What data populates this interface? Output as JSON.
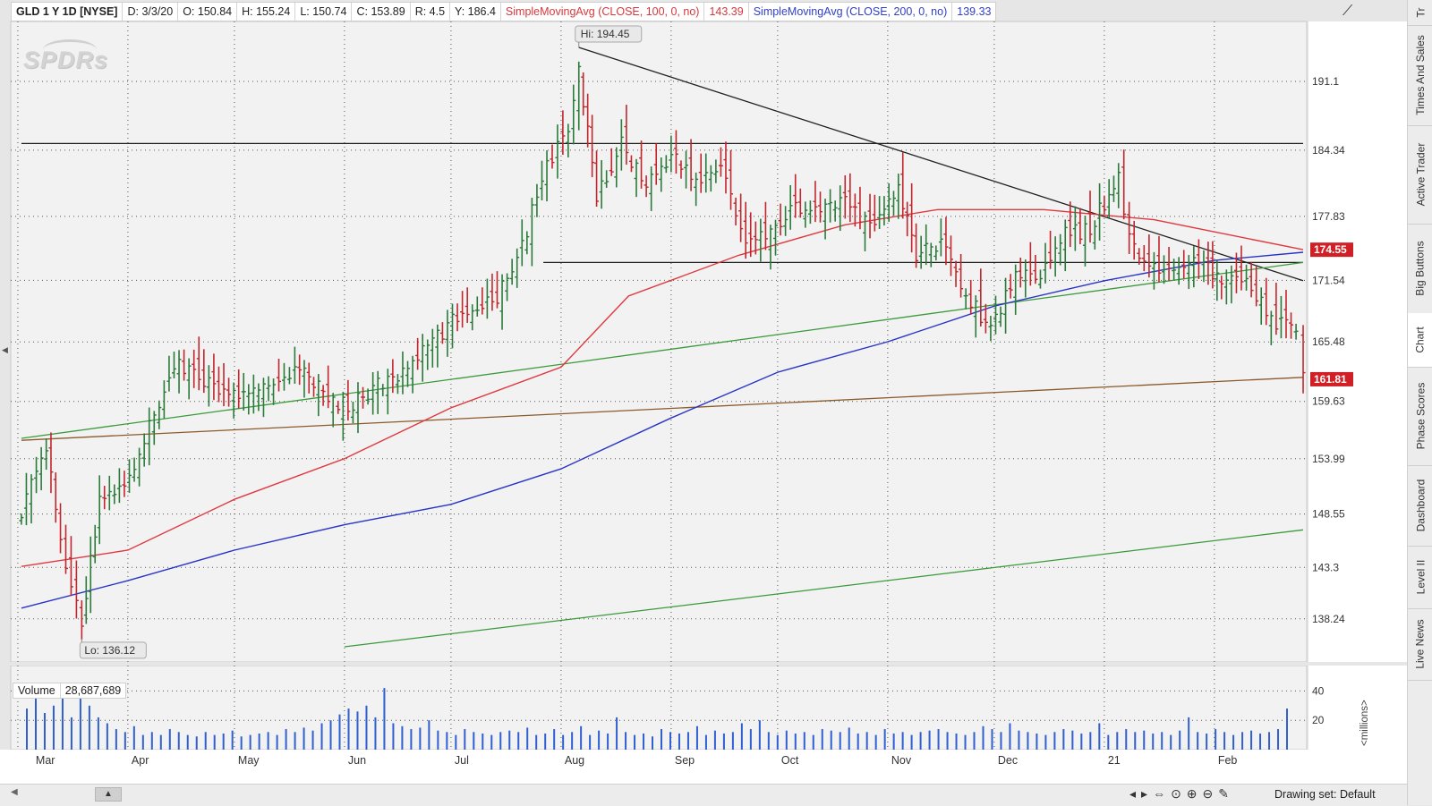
{
  "header": {
    "symbol": "GLD 1 Y 1D [NYSE]",
    "date": "D: 3/3/20",
    "open": "O: 150.84",
    "high": "H: 155.24",
    "low": "L: 150.74",
    "close": "C: 153.89",
    "range": "R: 4.5",
    "y": "Y: 186.4",
    "sma100_label": "SimpleMovingAvg (CLOSE, 100, 0, no)",
    "sma100_value": "143.39",
    "sma200_label": "SimpleMovingAvg (CLOSE, 200, 0, no)",
    "sma200_value": "139.33"
  },
  "logo_text": "SPDRs",
  "volume_panel": {
    "label": "Volume",
    "value": "28,687,689",
    "unit_label": "<millions>"
  },
  "right_tabs": [
    "Tr",
    "Times And Sales",
    "Active Trader",
    "Big Buttons",
    "Chart",
    "Phase Scores",
    "Dashboard",
    "Level II",
    "Live News"
  ],
  "active_tab": "Chart",
  "bottom_bar": {
    "drawing_set": "Drawing set: Default",
    "scroll_glyph": "▲"
  },
  "colors": {
    "up": "#2a7a3a",
    "down": "#c0272d",
    "sma100": "#e0383f",
    "sma200": "#2833c8",
    "trend_green": "#3a9a3a",
    "trend_brown": "#8a5a2a",
    "trend_black": "#222222",
    "volume": "#2f5fd0",
    "background": "#f2f2f2"
  },
  "chart_data": [
    {
      "type": "candlestick",
      "symbol": "GLD",
      "y_axis_ticks": [
        "191.1",
        "184.34",
        "177.83",
        "171.54",
        "165.48",
        "159.63",
        "153.99",
        "148.55",
        "143.3",
        "138.24"
      ],
      "x_axis_labels": [
        "Mar",
        "Apr",
        "May",
        "Jun",
        "Jul",
        "Aug",
        "Sep",
        "Oct",
        "Nov",
        "Dec",
        "21",
        "Feb"
      ],
      "price_markers": [
        {
          "label": "174.55",
          "value": 174.55,
          "color": "#d11f26"
        },
        {
          "label": "161.81",
          "value": 161.81,
          "color": "#d11f26"
        }
      ],
      "annotations": [
        {
          "text": "Hi: 194.45",
          "value": 194.45,
          "date": "2020-08-06"
        },
        {
          "text": "Lo: 136.12",
          "value": 136.12,
          "date": "2020-03-19"
        }
      ],
      "close_series": [
        [
          "2020-03-02",
          149.0
        ],
        [
          "2020-03-09",
          155.0
        ],
        [
          "2020-03-13",
          146.0
        ],
        [
          "2020-03-19",
          137.5
        ],
        [
          "2020-03-24",
          150.0
        ],
        [
          "2020-03-31",
          151.5
        ],
        [
          "2020-04-07",
          157.0
        ],
        [
          "2020-04-14",
          163.5
        ],
        [
          "2020-04-21",
          162.0
        ],
        [
          "2020-04-28",
          160.5
        ],
        [
          "2020-05-05",
          160.0
        ],
        [
          "2020-05-12",
          161.5
        ],
        [
          "2020-05-18",
          163.0
        ],
        [
          "2020-05-26",
          160.5
        ],
        [
          "2020-06-02",
          159.0
        ],
        [
          "2020-06-09",
          161.0
        ],
        [
          "2020-06-16",
          162.0
        ],
        [
          "2020-06-23",
          164.5
        ],
        [
          "2020-06-30",
          167.0
        ],
        [
          "2020-07-07",
          169.0
        ],
        [
          "2020-07-14",
          170.0
        ],
        [
          "2020-07-21",
          175.0
        ],
        [
          "2020-07-28",
          183.0
        ],
        [
          "2020-08-03",
          186.0
        ],
        [
          "2020-08-06",
          192.0
        ],
        [
          "2020-08-11",
          180.0
        ],
        [
          "2020-08-18",
          185.0
        ],
        [
          "2020-08-25",
          181.0
        ],
        [
          "2020-09-01",
          184.0
        ],
        [
          "2020-09-08",
          181.0
        ],
        [
          "2020-09-15",
          183.0
        ],
        [
          "2020-09-22",
          175.0
        ],
        [
          "2020-09-29",
          176.0
        ],
        [
          "2020-10-06",
          179.0
        ],
        [
          "2020-10-13",
          178.5
        ],
        [
          "2020-10-20",
          179.0
        ],
        [
          "2020-10-27",
          177.0
        ],
        [
          "2020-11-04",
          180.5
        ],
        [
          "2020-11-09",
          174.0
        ],
        [
          "2020-11-16",
          175.5
        ],
        [
          "2020-11-23",
          170.0
        ],
        [
          "2020-11-30",
          167.0
        ],
        [
          "2020-12-07",
          172.0
        ],
        [
          "2020-12-14",
          172.5
        ],
        [
          "2020-12-21",
          176.0
        ],
        [
          "2020-12-28",
          176.5
        ],
        [
          "2021-01-05",
          182.0
        ],
        [
          "2021-01-08",
          175.5
        ],
        [
          "2021-01-15",
          172.5
        ],
        [
          "2021-01-22",
          173.0
        ],
        [
          "2021-01-29",
          173.0
        ],
        [
          "2021-02-03",
          171.0
        ],
        [
          "2021-02-10",
          172.0
        ],
        [
          "2021-02-17",
          167.5
        ],
        [
          "2021-02-24",
          167.0
        ],
        [
          "2021-02-26",
          161.8
        ]
      ],
      "sma100": {
        "label": "SimpleMovingAvg (CLOSE, 100, 0, no)",
        "points": [
          [
            "2020-03-02",
            143.4
          ],
          [
            "2020-04-01",
            145.0
          ],
          [
            "2020-05-01",
            150.0
          ],
          [
            "2020-06-01",
            154.0
          ],
          [
            "2020-07-01",
            159.0
          ],
          [
            "2020-08-01",
            163.0
          ],
          [
            "2020-08-20",
            170.0
          ],
          [
            "2020-09-20",
            174.0
          ],
          [
            "2020-10-20",
            177.0
          ],
          [
            "2020-11-15",
            178.5
          ],
          [
            "2020-12-15",
            178.5
          ],
          [
            "2021-01-15",
            177.5
          ],
          [
            "2021-02-26",
            174.55
          ]
        ]
      },
      "sma200": {
        "label": "SimpleMovingAvg (CLOSE, 200, 0, no)",
        "points": [
          [
            "2020-03-02",
            139.3
          ],
          [
            "2020-04-01",
            142.0
          ],
          [
            "2020-05-01",
            145.0
          ],
          [
            "2020-06-01",
            147.5
          ],
          [
            "2020-07-01",
            149.5
          ],
          [
            "2020-08-01",
            153.0
          ],
          [
            "2020-09-01",
            158.0
          ],
          [
            "2020-10-01",
            162.5
          ],
          [
            "2020-11-01",
            165.5
          ],
          [
            "2020-12-01",
            169.0
          ],
          [
            "2021-01-01",
            171.5
          ],
          [
            "2021-02-01",
            173.5
          ],
          [
            "2021-02-26",
            174.3
          ]
        ]
      },
      "trendlines": [
        {
          "name": "horizontal-resistance",
          "color": "black",
          "points": [
            [
              "2020-03-02",
              185.0
            ],
            [
              "2021-02-26",
              185.0
            ]
          ]
        },
        {
          "name": "horizontal-support",
          "color": "black",
          "points": [
            [
              "2020-07-27",
              173.3
            ],
            [
              "2021-02-26",
              173.3
            ]
          ]
        },
        {
          "name": "descending",
          "color": "black",
          "points": [
            [
              "2020-08-06",
              194.45
            ],
            [
              "2021-02-26",
              171.5
            ]
          ]
        },
        {
          "name": "green-upper",
          "color": "green",
          "points": [
            [
              "2020-03-02",
              156.0
            ],
            [
              "2021-02-26",
              173.3
            ]
          ]
        },
        {
          "name": "brown",
          "color": "brown",
          "points": [
            [
              "2020-03-02",
              155.8
            ],
            [
              "2021-02-26",
              162.0
            ]
          ]
        },
        {
          "name": "green-lower",
          "color": "green",
          "points": [
            [
              "2020-06-01",
              135.5
            ],
            [
              "2021-02-26",
              147.0
            ]
          ]
        }
      ]
    },
    {
      "type": "bar",
      "name": "Volume",
      "y_axis_ticks": [
        "40",
        "20"
      ],
      "unit": "millions",
      "values": [
        28,
        42,
        25,
        30,
        35,
        22,
        38,
        30,
        22,
        18,
        14,
        12,
        16,
        10,
        12,
        10,
        14,
        12,
        10,
        9,
        12,
        10,
        11,
        13,
        9,
        10,
        11,
        12,
        10,
        14,
        12,
        15,
        13,
        18,
        20,
        24,
        28,
        26,
        30,
        22,
        42,
        18,
        16,
        14,
        15,
        20,
        13,
        12,
        10,
        14,
        12,
        11,
        10,
        12,
        13,
        12,
        15,
        10,
        11,
        14,
        10,
        12,
        16,
        10,
        13,
        11,
        22,
        12,
        10,
        11,
        9,
        14,
        12,
        11,
        12,
        16,
        10,
        13,
        11,
        12,
        18,
        14,
        20,
        12,
        10,
        13,
        11,
        12,
        10,
        14,
        13,
        12,
        15,
        11,
        12,
        10,
        14,
        11,
        12,
        10,
        12,
        13,
        14,
        12,
        11,
        10,
        12,
        16,
        14,
        12,
        18,
        13,
        12,
        11,
        10,
        12,
        14,
        13,
        11,
        12,
        18,
        10,
        12,
        14,
        12,
        13,
        11,
        12,
        10,
        13,
        22,
        12,
        11,
        14,
        12,
        10,
        12,
        13,
        11,
        12,
        14,
        28
      ]
    }
  ]
}
